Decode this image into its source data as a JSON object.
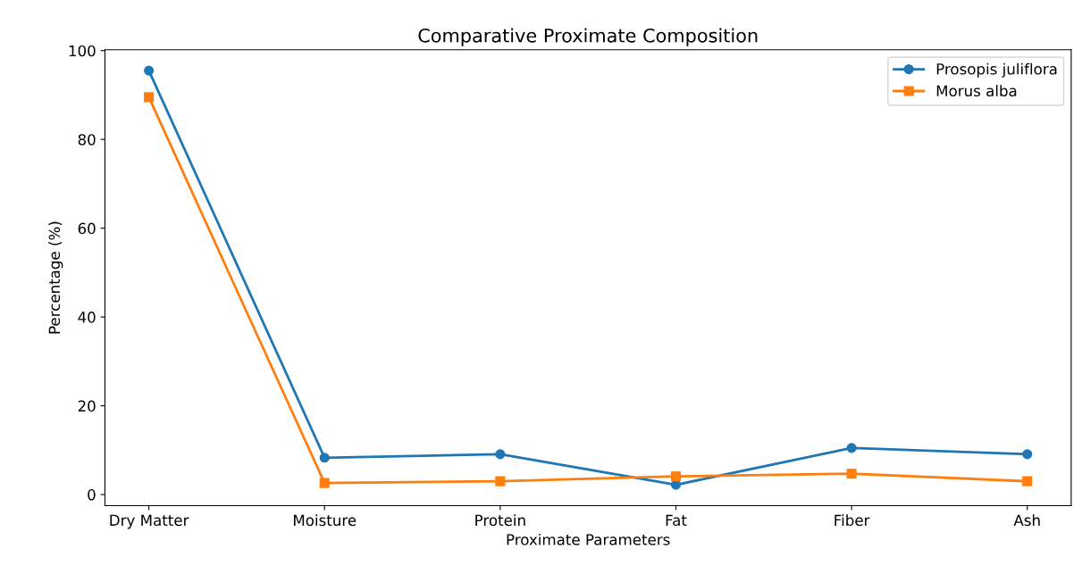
{
  "chart_data": {
    "type": "line",
    "title": "Comparative Proximate Composition",
    "xlabel": "Proximate Parameters",
    "ylabel": "Percentage (%)",
    "categories": [
      "Dry Matter",
      "Moisture",
      "Protein",
      "Fat",
      "Fiber",
      "Ash"
    ],
    "series": [
      {
        "name": "Prosopis juliflora",
        "color": "#1f77b4",
        "marker": "circle",
        "values": [
          95.5,
          8.3,
          9.1,
          2.2,
          10.5,
          9.1
        ]
      },
      {
        "name": "Morus alba",
        "color": "#ff7f0e",
        "marker": "square",
        "values": [
          89.5,
          2.6,
          3.0,
          4.1,
          4.7,
          3.0
        ]
      }
    ],
    "ylim": [
      -2.5,
      100.2
    ],
    "yticks": [
      0,
      20,
      40,
      60,
      80,
      100
    ],
    "grid": false,
    "legend": "top right",
    "line_style": "solid"
  }
}
